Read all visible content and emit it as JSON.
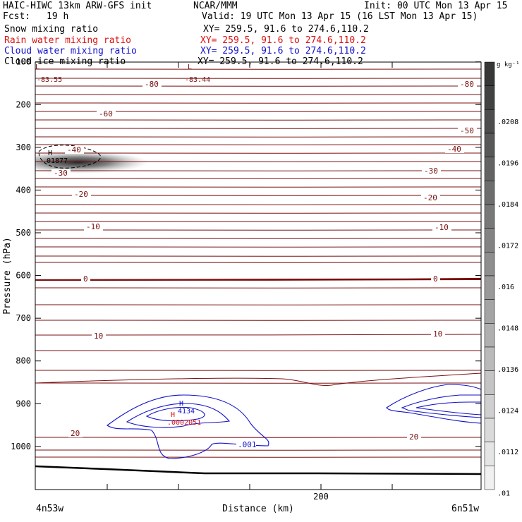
{
  "header": {
    "model": "HAIC-HIWC 13km ARW-GFS init",
    "org": "NCAR/MMM",
    "init": "Init: 00 UTC Mon 13 Apr 15",
    "fcst_label": "Fcst:",
    "fcst_value": "19 h",
    "valid": "Valid: 19 UTC Mon 13 Apr 15 (16 LST Mon 13 Apr 15)",
    "fields": [
      {
        "name": "Snow mixing ratio",
        "xy": "XY= 259.5, 91.6 to 274.6,110.2",
        "color": "#000000"
      },
      {
        "name": "Rain water mixing ratio",
        "xy": "XY= 259.5, 91.6 to 274.6,110.2",
        "color": "#dd1111"
      },
      {
        "name": "Cloud water mixing ratio",
        "xy": "XY= 259.5, 91.6 to 274.6,110.2",
        "color": "#1111cc"
      },
      {
        "name": "Cloud ice mixing ratio",
        "xy": "XY= 259.5, 91.6 to 274.6,110.2",
        "color": "#000000"
      }
    ]
  },
  "chart_data": {
    "type": "cross-section",
    "xlabel": "Distance (km)",
    "ylabel": "Pressure (hPa)",
    "x_ticks": [
      "200"
    ],
    "y_ticks": [
      "100",
      "200",
      "300",
      "400",
      "500",
      "600",
      "700",
      "800",
      "900",
      "1000"
    ],
    "y_range": [
      50,
      1050
    ],
    "left_end_label": "4n53w",
    "right_end_label": "6n51w",
    "colorbar_unit": "g kg⁻¹",
    "colorbar_ticks": [
      ".0208",
      ".0196",
      ".0184",
      ".0172",
      ".016",
      ".0148",
      ".0136",
      ".0124",
      ".0112",
      ".01"
    ],
    "temperature_labels": [
      {
        "text": "-80",
        "left": "-80",
        "right": "-80"
      },
      {
        "text": "-60"
      },
      {
        "text": "-50"
      },
      {
        "text": "-40",
        "left": "-40",
        "right": "-40"
      },
      {
        "text": "-30",
        "left": "-30",
        "right": "-30"
      },
      {
        "text": "-20",
        "left": "-20",
        "right": "-20"
      },
      {
        "text": "-10",
        "left": "-10",
        "right": "-10"
      },
      {
        "text": "0",
        "left": "0",
        "right": "0"
      },
      {
        "text": "10",
        "left": "10",
        "right": "10"
      },
      {
        "text": "20",
        "left": "20",
        "right": "20"
      }
    ],
    "extrema": [
      {
        "type": "L",
        "value": "-83.55"
      },
      {
        "type": "L",
        "value": "-83.44"
      },
      {
        "type": "H",
        "value": "01877"
      },
      {
        "type": "H",
        "value": "4134"
      },
      {
        "type": "H",
        "value": ".0002051"
      }
    ],
    "cloud_contour_label": ".001",
    "colors": {
      "temperature": "#7a1010",
      "cloud_water": "#1111cc",
      "rain": "#dd1111",
      "terrain": "#000000"
    }
  }
}
